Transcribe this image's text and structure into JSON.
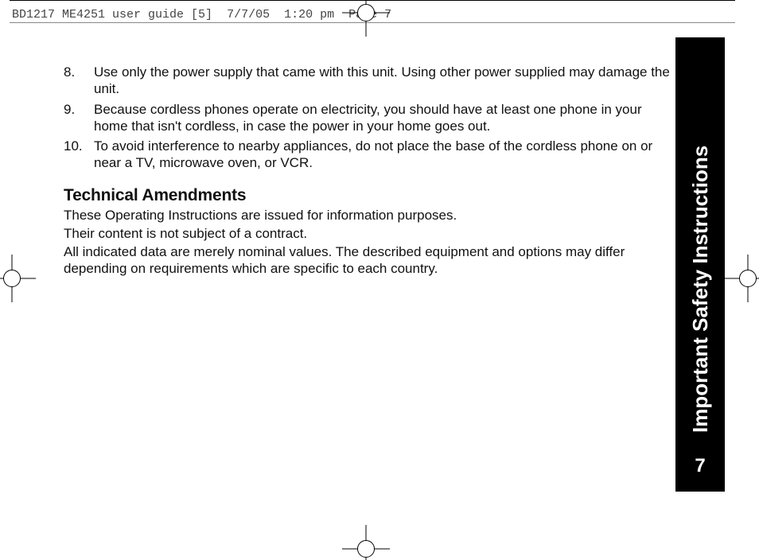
{
  "printHeader": {
    "docId": "BD1217 ME4251 user guide [5]",
    "date": "7/7/05",
    "time": "1:20 pm",
    "page": "Page 7"
  },
  "list": {
    "items": [
      "Use only the power supply that came with this unit. Using other power supplied may damage the unit.",
      "Because cordless phones operate on electricity, you should have at least one phone in your home that isn't cordless, in case the power in your home goes out.",
      "To avoid interference to nearby appliances, do not place the base of the cordless phone on or near a TV, microwave oven, or VCR."
    ]
  },
  "section": {
    "heading": "Technical Amendments",
    "para1": "These Operating Instructions are issued for information purposes.",
    "para2": "Their content is not subject of a contract.",
    "para3": "All indicated data are merely nominal values. The described equipment and options may differ depending on requirements which are specific to each country."
  },
  "tab": {
    "title": "Important Safety Instructions",
    "pageNumber": "7"
  },
  "style": {
    "bodyFontSizePx": 17,
    "headingFontSizePx": 21,
    "tabBg": "#000000",
    "tabFg": "#ffffff",
    "pageBg": "#ffffff",
    "textColor": "#111111",
    "listStart": 8
  }
}
